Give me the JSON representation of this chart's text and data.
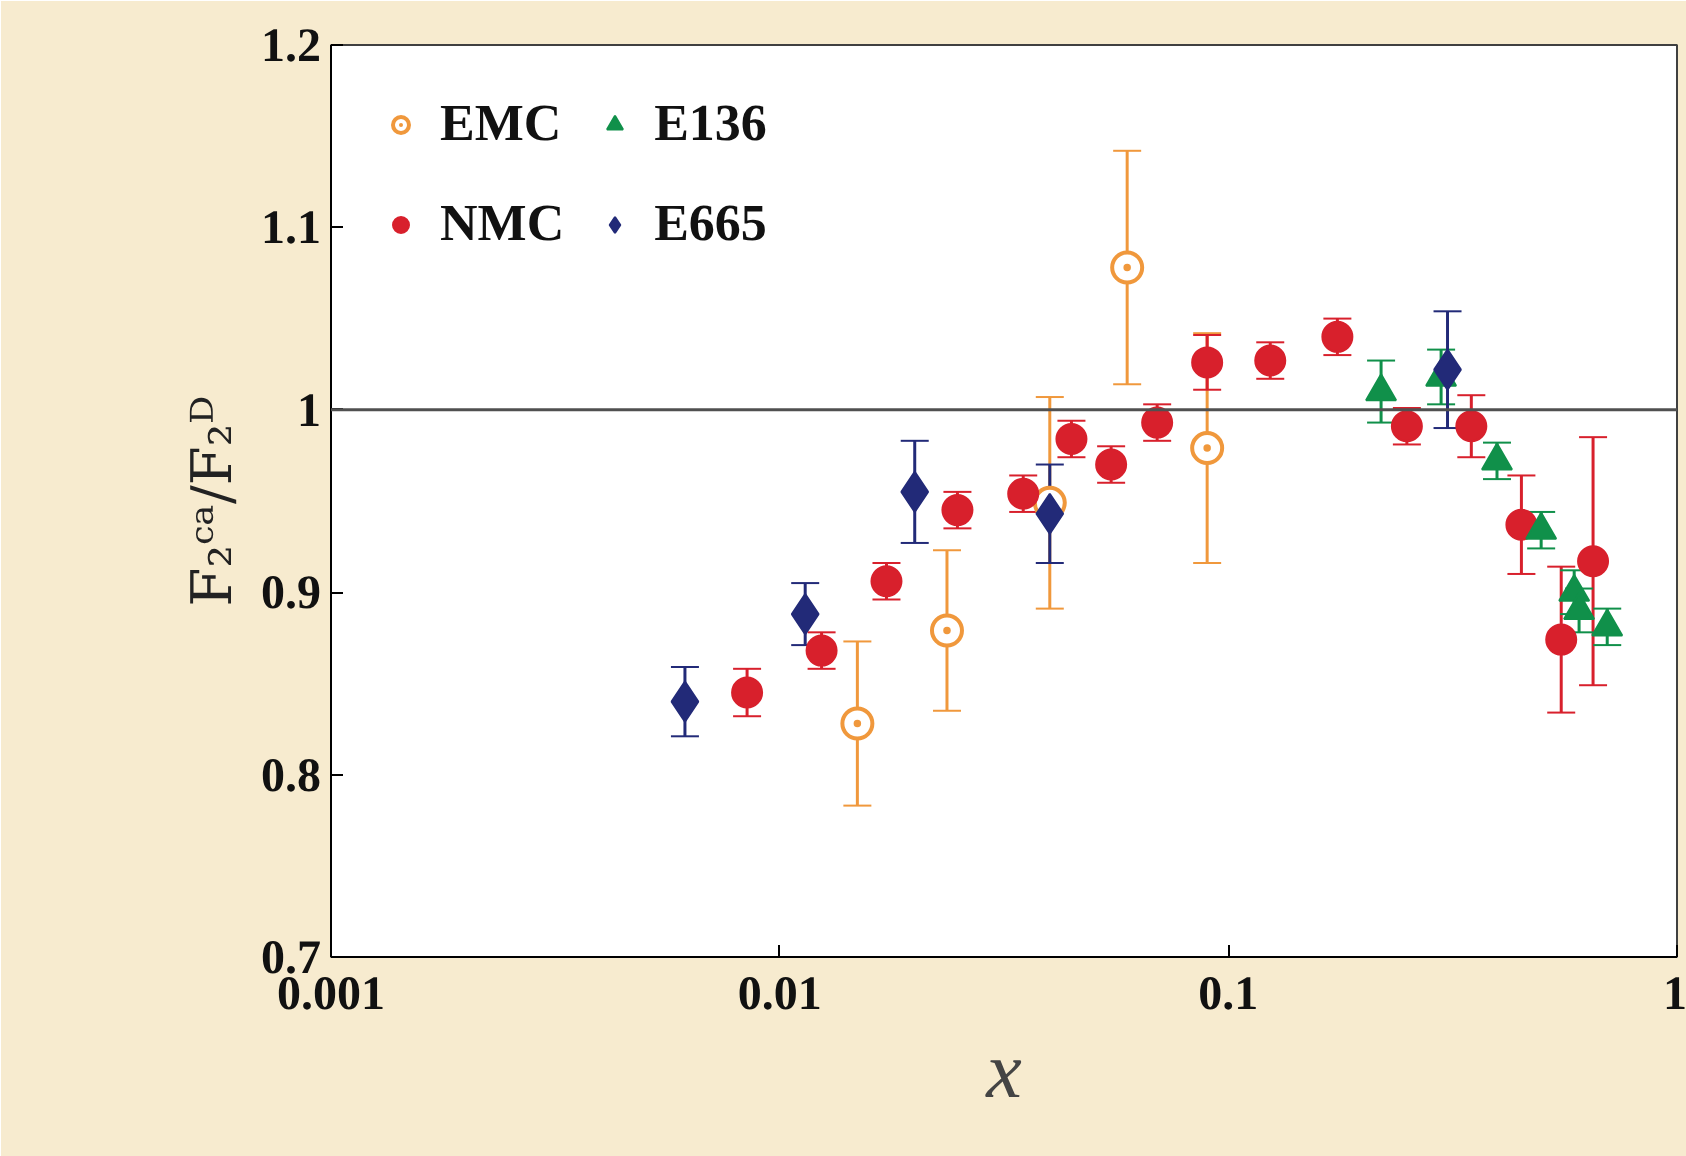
{
  "chart_data": {
    "type": "scatter",
    "xlabel": "x",
    "ylabel": "F₂ᶜᵃ/F₂ᴰ",
    "log": "x",
    "xlim": [
      0.001,
      1
    ],
    "xticks": [
      0.001,
      0.01,
      0.1,
      1
    ],
    "ylim": [
      0.7,
      1.2
    ],
    "yticks": [
      0.7,
      0.8,
      0.9,
      1,
      1.1,
      1.2
    ],
    "grid": false,
    "legend": "top left",
    "ref_lines": [
      {
        "axis": "y",
        "value": 1,
        "color": "#505050"
      }
    ],
    "series": [
      {
        "name": "EMC",
        "color": "#f0983c",
        "marker": "circle_dot",
        "x": [
          0.0149,
          0.0236,
          0.04,
          0.0595,
          0.0897
        ],
        "values": [
          0.828,
          0.879,
          0.949,
          1.078,
          0.979
        ],
        "errors": [
          0.045,
          0.044,
          0.058,
          0.064,
          0.063
        ]
      },
      {
        "name": "NMC",
        "color": "#d8202c",
        "marker": "circle",
        "x": [
          0.00846,
          0.0124,
          0.0173,
          0.0249,
          0.0349,
          0.0447,
          0.0548,
          0.0694,
          0.0897,
          0.124,
          0.175,
          0.25,
          0.348,
          0.45,
          0.552,
          0.65
        ],
        "values": [
          0.845,
          0.868,
          0.906,
          0.945,
          0.954,
          0.984,
          0.97,
          0.993,
          1.026,
          1.027,
          1.04,
          0.991,
          0.991,
          0.937,
          0.874,
          0.917
        ],
        "errors": [
          0.013,
          0.01,
          0.01,
          0.01,
          0.01,
          0.01,
          0.01,
          0.01,
          0.015,
          0.01,
          0.01,
          0.01,
          0.017,
          0.027,
          0.04,
          0.068
        ]
      },
      {
        "name": "E136",
        "color": "#10904a",
        "marker": "triangle",
        "x": [
          0.219,
          0.298,
          0.397,
          0.498,
          0.59,
          0.605,
          0.699
        ],
        "values": [
          1.01,
          1.018,
          0.972,
          0.934,
          0.9,
          0.89,
          0.881
        ],
        "errors": [
          0.017,
          0.015,
          0.01,
          0.01,
          0.012,
          0.012,
          0.01
        ]
      },
      {
        "name": "E665",
        "color": "#222a78",
        "marker": "diamond",
        "x": [
          0.00615,
          0.0114,
          0.02,
          0.04,
          0.308
        ],
        "values": [
          0.84,
          0.888,
          0.955,
          0.943,
          1.022
        ],
        "errors": [
          0.019,
          0.017,
          0.028,
          0.027,
          0.032
        ]
      }
    ]
  }
}
